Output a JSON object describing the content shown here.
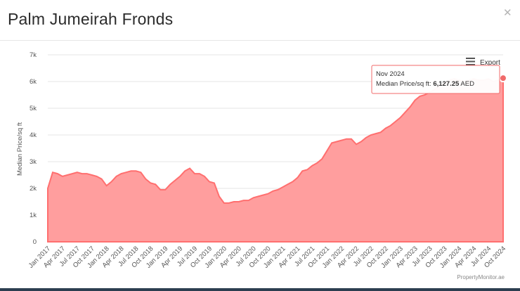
{
  "header": {
    "title": "Palm Jumeirah Fronds",
    "close_icon": "close-icon"
  },
  "export": {
    "label": "Export",
    "icon": "menu-icon"
  },
  "credits": "PropertyMonitor.ae",
  "tooltip": {
    "date": "Nov 2024",
    "label": "Median Price/sq ft:",
    "value": "6,127.25",
    "unit": "AED"
  },
  "colors": {
    "area_fill": "#ff9e9e",
    "line": "#ff6f6f",
    "marker": "#f06a6a"
  },
  "chart_data": {
    "type": "area",
    "ylabel": "Median Price/sq ft",
    "ylim": [
      0,
      7000
    ],
    "yticks": [
      0,
      1000,
      2000,
      3000,
      4000,
      5000,
      6000,
      7000
    ],
    "ytick_labels": [
      "0",
      "1k",
      "2k",
      "3k",
      "4k",
      "5k",
      "6k",
      "7k"
    ],
    "xtick_labels": [
      "Jan 2017",
      "Apr 2017",
      "Jul 2017",
      "Oct 2017",
      "Jan 2018",
      "Apr 2018",
      "Jul 2018",
      "Oct 2018",
      "Jan 2019",
      "Apr 2019",
      "Jul 2019",
      "Oct 2019",
      "Jan 2020",
      "Apr 2020",
      "Jul 2020",
      "Oct 2020",
      "Jan 2021",
      "Apr 2021",
      "Jul 2021",
      "Oct 2021",
      "Jan 2022",
      "Apr 2022",
      "Jul 2022",
      "Oct 2022",
      "Jan 2023",
      "Apr 2023",
      "Jul 2023",
      "Oct 2023",
      "Jan 2024",
      "Apr 2024",
      "Jul 2024",
      "Oct 2024"
    ],
    "x_start": "Jan 2017",
    "grid": true,
    "series": [
      {
        "values": [
          2000,
          2600,
          2550,
          2450,
          2500,
          2550,
          2600,
          2550,
          2550,
          2500,
          2450,
          2350,
          2100,
          2250,
          2450,
          2550,
          2600,
          2650,
          2650,
          2600,
          2350,
          2200,
          2150,
          1950,
          1950,
          2150,
          2300,
          2450,
          2650,
          2750,
          2550,
          2550,
          2450,
          2250,
          2200,
          1700,
          1450,
          1450,
          1500,
          1500,
          1550,
          1550,
          1650,
          1700,
          1750,
          1800,
          1900,
          1950,
          2050,
          2150,
          2250,
          2400,
          2650,
          2700,
          2850,
          2950,
          3100,
          3400,
          3700,
          3750,
          3800,
          3850,
          3850,
          3650,
          3750,
          3900,
          4000,
          4050,
          4100,
          4250,
          4350,
          4500,
          4650,
          4850,
          5050,
          5300,
          5450,
          5500,
          5600,
          5700,
          5850,
          5950,
          6050,
          6100,
          6050,
          6000,
          6050,
          6100,
          6050,
          6050,
          6100,
          6000,
          6050,
          6127.25
        ]
      }
    ]
  }
}
